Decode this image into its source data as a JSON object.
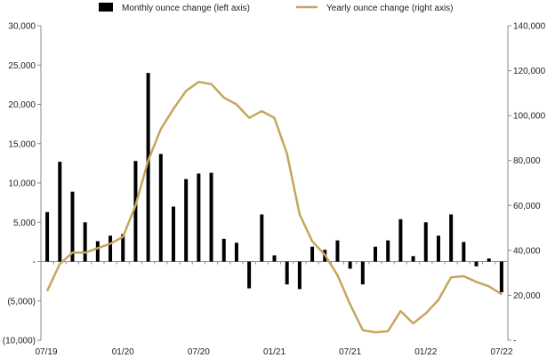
{
  "chart_data": {
    "type": "bar+line",
    "legend": {
      "placement": "top-center",
      "entries": [
        {
          "label": "Monthly ounce change (left axis)",
          "kind": "bar",
          "color": "#000000"
        },
        {
          "label": "Yearly ounce change (right axis)",
          "kind": "line",
          "color": "#C5A65B"
        }
      ]
    },
    "left_axis": {
      "range": [
        -10000,
        30000
      ],
      "ticks": [
        {
          "value": 30000,
          "label": "30,000"
        },
        {
          "value": 25000,
          "label": "25,000"
        },
        {
          "value": 20000,
          "label": "20,000"
        },
        {
          "value": 15000,
          "label": "15,000"
        },
        {
          "value": 10000,
          "label": "10,000"
        },
        {
          "value": 5000,
          "label": "5,000"
        },
        {
          "value": 0,
          "label": "-"
        },
        {
          "value": -5000,
          "label": "(5,000)"
        },
        {
          "value": -10000,
          "label": "(10,000)"
        }
      ]
    },
    "right_axis": {
      "range": [
        0,
        140000
      ],
      "ticks": [
        {
          "value": 140000,
          "label": "140,000"
        },
        {
          "value": 120000,
          "label": "120,000"
        },
        {
          "value": 100000,
          "label": "100,000"
        },
        {
          "value": 80000,
          "label": "80,000"
        },
        {
          "value": 60000,
          "label": "60,000"
        },
        {
          "value": 40000,
          "label": "40,000"
        },
        {
          "value": 20000,
          "label": "20,000"
        },
        {
          "value": 0,
          "label": "-"
        }
      ]
    },
    "x_ticks": [
      {
        "index": 0,
        "label": "07/19"
      },
      {
        "index": 6,
        "label": "01/20"
      },
      {
        "index": 12,
        "label": "07/20"
      },
      {
        "index": 18,
        "label": "01/21"
      },
      {
        "index": 24,
        "label": "07/21"
      },
      {
        "index": 30,
        "label": "01/22"
      },
      {
        "index": 36,
        "label": "07/22"
      }
    ],
    "grid": false,
    "series": [
      {
        "name": "Monthly ounce change (left axis)",
        "type": "bar",
        "axis": "left",
        "color": "#000000",
        "values": [
          6300,
          12700,
          8900,
          5000,
          2600,
          3300,
          3500,
          12800,
          24000,
          13700,
          7000,
          10500,
          11200,
          11300,
          2900,
          2400,
          -3400,
          6000,
          800,
          -2900,
          -3500,
          1900,
          1500,
          2700,
          -900,
          -2900,
          1900,
          2700,
          5400,
          700,
          5000,
          3300,
          6000,
          2500,
          -600,
          400,
          -3900
        ]
      },
      {
        "name": "Yearly ounce change (right axis)",
        "type": "line",
        "axis": "right",
        "color": "#C5A65B",
        "values": [
          22000,
          34000,
          39000,
          39000,
          41000,
          43000,
          46000,
          60000,
          80000,
          94000,
          103000,
          111000,
          115000,
          114000,
          108000,
          105000,
          99000,
          102000,
          99000,
          83000,
          56000,
          44000,
          38000,
          29000,
          16000,
          4500,
          3500,
          4000,
          13000,
          7500,
          12000,
          18000,
          28000,
          28500,
          26000,
          24000,
          20500
        ]
      }
    ]
  }
}
